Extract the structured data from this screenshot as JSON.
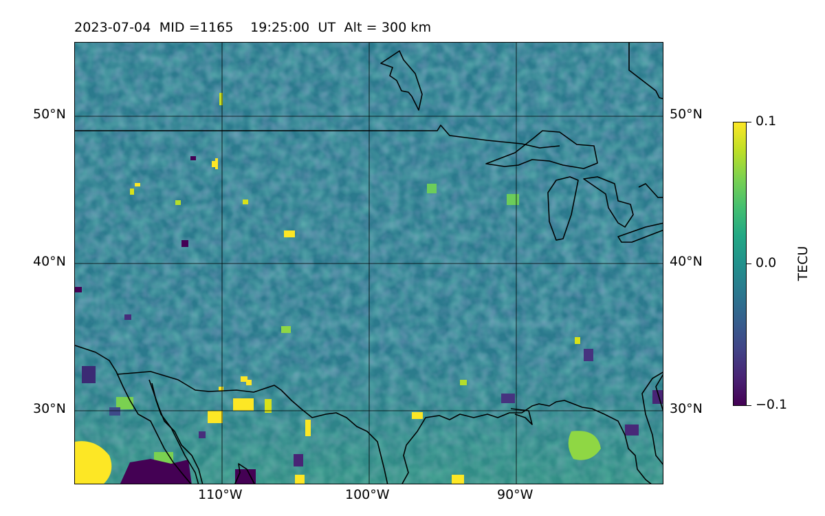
{
  "title": "2023-07-04  MID =1165    19:25:00  UT  Alt = 300 km",
  "axes": {
    "lon_labels": [
      "110°W",
      "100°W",
      "90°W"
    ],
    "lat_labels": [
      "50°N",
      "40°N",
      "30°N"
    ],
    "extent": {
      "lon": [
        -120,
        -80
      ],
      "lat": [
        25,
        55
      ]
    },
    "gridlines": true
  },
  "colorbar": {
    "label": "TECU",
    "colormap": "viridis",
    "ticks": [
      "0.1",
      "0.0",
      "−0.1"
    ],
    "range": [
      -0.1,
      0.1
    ]
  },
  "features": {
    "coastlines": true,
    "country_borders": true,
    "great_lakes": true,
    "field": "differential TEC, noisy near 0.0 with strong positive/negative patches along southern edge (Mexico / Gulf region)"
  }
}
